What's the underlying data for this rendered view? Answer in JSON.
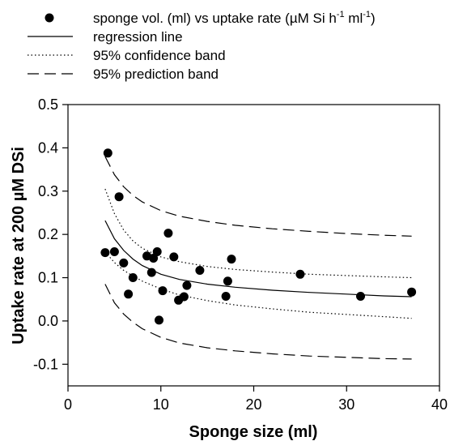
{
  "chart_data": {
    "type": "scatter",
    "xlabel": "Sponge size (ml)",
    "ylabel": "Uptake rate at 200 µM DSi",
    "xlim": [
      0,
      40
    ],
    "ylim": [
      -0.15,
      0.5
    ],
    "x_ticks": [
      0,
      10,
      20,
      30,
      40
    ],
    "y_ticks": [
      -0.1,
      0.0,
      0.1,
      0.2,
      0.3,
      0.4,
      0.5
    ],
    "x_tick_labels": [
      "0",
      "10",
      "20",
      "30",
      "40"
    ],
    "y_tick_labels": [
      "-0.1",
      "0.0",
      "0.1",
      "0.2",
      "0.3",
      "0.4",
      "0.5"
    ],
    "grid": false,
    "legend_position": "top-left",
    "legend": {
      "points_prefix": "sponge vol. (ml) vs uptake rate (µM Si h",
      "points_sup1": "-1",
      "points_mid": " ml",
      "points_sup2": "-1",
      "points_suffix": ")",
      "regression": "regression line",
      "confidence": "95% confidence band",
      "prediction": "95% prediction band"
    },
    "points": [
      {
        "x": 4.0,
        "y": 0.158
      },
      {
        "x": 4.3,
        "y": 0.388
      },
      {
        "x": 5.0,
        "y": 0.16
      },
      {
        "x": 5.5,
        "y": 0.287
      },
      {
        "x": 6.0,
        "y": 0.134
      },
      {
        "x": 6.5,
        "y": 0.062
      },
      {
        "x": 7.0,
        "y": 0.1
      },
      {
        "x": 8.5,
        "y": 0.15
      },
      {
        "x": 9.0,
        "y": 0.112
      },
      {
        "x": 9.2,
        "y": 0.145
      },
      {
        "x": 9.6,
        "y": 0.16
      },
      {
        "x": 9.8,
        "y": 0.002
      },
      {
        "x": 10.2,
        "y": 0.07
      },
      {
        "x": 10.8,
        "y": 0.203
      },
      {
        "x": 11.4,
        "y": 0.148
      },
      {
        "x": 11.9,
        "y": 0.048
      },
      {
        "x": 12.5,
        "y": 0.056
      },
      {
        "x": 12.8,
        "y": 0.082
      },
      {
        "x": 14.2,
        "y": 0.117
      },
      {
        "x": 17.0,
        "y": 0.057
      },
      {
        "x": 17.2,
        "y": 0.092
      },
      {
        "x": 17.6,
        "y": 0.143
      },
      {
        "x": 25.0,
        "y": 0.108
      },
      {
        "x": 31.5,
        "y": 0.057
      },
      {
        "x": 37.0,
        "y": 0.067
      }
    ],
    "regression_line": {
      "x": [
        4,
        5,
        6,
        7,
        8,
        10,
        12,
        15,
        18,
        22,
        26,
        30,
        34,
        37
      ],
      "y": [
        0.232,
        0.19,
        0.163,
        0.143,
        0.128,
        0.108,
        0.096,
        0.085,
        0.078,
        0.071,
        0.066,
        0.062,
        0.058,
        0.056
      ]
    },
    "confidence_band_upper": {
      "x": [
        4,
        5,
        6,
        7,
        8,
        10,
        12,
        15,
        18,
        22,
        26,
        30,
        34,
        37
      ],
      "y": [
        0.305,
        0.248,
        0.21,
        0.185,
        0.168,
        0.148,
        0.137,
        0.126,
        0.119,
        0.113,
        0.108,
        0.105,
        0.102,
        0.1
      ]
    },
    "confidence_band_lower": {
      "x": [
        4,
        5,
        6,
        7,
        8,
        10,
        12,
        15,
        18,
        22,
        26,
        30,
        34,
        37
      ],
      "y": [
        0.16,
        0.135,
        0.117,
        0.104,
        0.092,
        0.074,
        0.06,
        0.047,
        0.037,
        0.028,
        0.02,
        0.015,
        0.01,
        0.006
      ]
    },
    "prediction_band_upper": {
      "x": [
        4,
        5,
        6,
        7,
        8,
        10,
        12,
        15,
        18,
        22,
        26,
        30,
        34,
        37
      ],
      "y": [
        0.38,
        0.338,
        0.31,
        0.29,
        0.275,
        0.255,
        0.242,
        0.23,
        0.221,
        0.213,
        0.207,
        0.202,
        0.198,
        0.196
      ]
    },
    "prediction_band_lower": {
      "x": [
        4,
        5,
        6,
        7,
        8,
        10,
        12,
        15,
        18,
        22,
        26,
        30,
        34,
        37
      ],
      "y": [
        0.085,
        0.042,
        0.016,
        -0.003,
        -0.018,
        -0.038,
        -0.051,
        -0.062,
        -0.069,
        -0.076,
        -0.081,
        -0.084,
        -0.087,
        -0.088
      ]
    }
  }
}
